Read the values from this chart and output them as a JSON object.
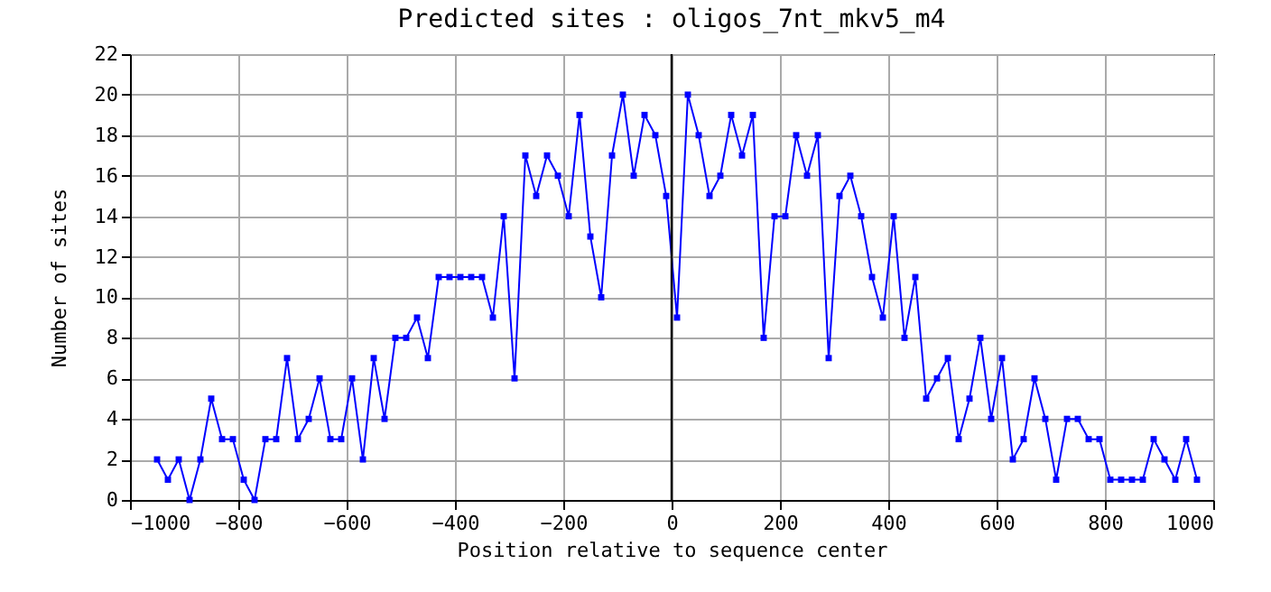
{
  "chart_data": {
    "type": "line",
    "title": "Predicted sites : oligos_7nt_mkv5_m4",
    "xlabel": "Position relative to sequence center",
    "ylabel": "Number of sites",
    "x": [
      -950,
      -930,
      -910,
      -890,
      -870,
      -850,
      -830,
      -810,
      -790,
      -770,
      -750,
      -730,
      -710,
      -690,
      -670,
      -650,
      -630,
      -610,
      -590,
      -570,
      -550,
      -530,
      -510,
      -490,
      -470,
      -450,
      -430,
      -410,
      -390,
      -370,
      -350,
      -330,
      -310,
      -290,
      -270,
      -250,
      -230,
      -210,
      -190,
      -170,
      -150,
      -130,
      -110,
      -90,
      -70,
      -50,
      -30,
      -10,
      10,
      30,
      50,
      70,
      90,
      110,
      130,
      150,
      170,
      190,
      210,
      230,
      250,
      270,
      290,
      310,
      330,
      350,
      370,
      390,
      410,
      430,
      450,
      470,
      490,
      510,
      530,
      550,
      570,
      590,
      610,
      630,
      650,
      670,
      690,
      710,
      730,
      750,
      770,
      790,
      810,
      830,
      850,
      870,
      890,
      910,
      930,
      950,
      970
    ],
    "series": [
      {
        "color": "#0000ff",
        "values": [
          2,
          1,
          2,
          0,
          2,
          5,
          3,
          3,
          1,
          0,
          3,
          3,
          7,
          3,
          4,
          6,
          3,
          3,
          6,
          2,
          7,
          4,
          8,
          8,
          9,
          7,
          11,
          11,
          11,
          11,
          11,
          9,
          14,
          6,
          17,
          15,
          17,
          16,
          14,
          19,
          13,
          10,
          17,
          20,
          16,
          19,
          18,
          15,
          9,
          20,
          18,
          15,
          16,
          19,
          17,
          19,
          8,
          14,
          14,
          18,
          16,
          18,
          7,
          15,
          16,
          14,
          11,
          9,
          14,
          8,
          11,
          5,
          6,
          7,
          3,
          5,
          8,
          4,
          7,
          2,
          3,
          6,
          4,
          1,
          4,
          4,
          3,
          3,
          1,
          1,
          1,
          1,
          3,
          2,
          1,
          3,
          1
        ]
      }
    ],
    "xlim": [
      -1000,
      1000
    ],
    "xticks": [
      -1000,
      -800,
      -600,
      -400,
      -200,
      0,
      200,
      400,
      600,
      800,
      1000
    ],
    "ylim": [
      0,
      22
    ],
    "yticks": [
      0,
      2,
      4,
      6,
      8,
      10,
      12,
      14,
      16,
      18,
      20,
      22
    ],
    "ref_lines": [
      {
        "axis": "x",
        "value": 0,
        "color": "#000000"
      }
    ],
    "grid": true,
    "marker": "square",
    "line_style": "solid"
  }
}
